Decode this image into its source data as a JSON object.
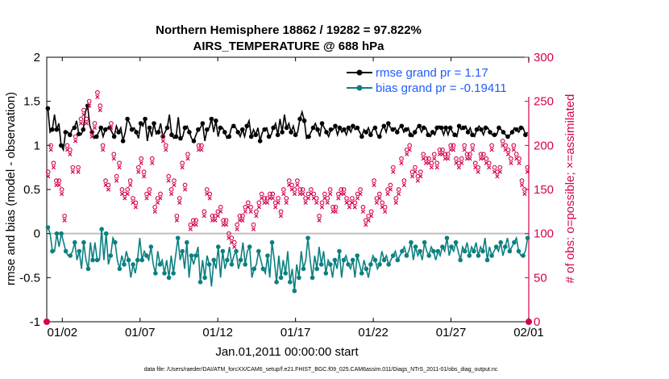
{
  "chart_data": {
    "type": "line",
    "title": "Northern Hemisphere 18862 / 19282 = 97.822%",
    "subtitle": "AIRS_TEMPERATURE @ 688 hPa",
    "xlabel": "Jan.01,2011 00:00:00 start",
    "ylabel_left": "rmse and bias (model - observation)",
    "ylabel_right": "# of obs: o=possible; ×=assimilated",
    "ylim_left": [
      -1,
      2
    ],
    "ylim_right": [
      0,
      300
    ],
    "xlim": [
      0,
      31
    ],
    "x_ticks": [
      {
        "day": 1,
        "label": "01/02"
      },
      {
        "day": 6,
        "label": "01/07"
      },
      {
        "day": 11,
        "label": "01/12"
      },
      {
        "day": 16,
        "label": "01/17"
      },
      {
        "day": 21,
        "label": "01/22"
      },
      {
        "day": 26,
        "label": "01/27"
      },
      {
        "day": 31,
        "label": "02/01"
      }
    ],
    "y_ticks_left": [
      "-1",
      "-0.5",
      "0",
      "0.5",
      "1",
      "1.5",
      "2"
    ],
    "y_ticks_right": [
      "0",
      "50",
      "100",
      "150",
      "200",
      "250",
      "300"
    ],
    "colors": {
      "rmse": "#000000",
      "bias": "#0c8080",
      "obs": "#d6004f",
      "legend_text": "#1f5cff",
      "zero_line": "#c0c0c0"
    },
    "legend": [
      {
        "name": "rmse grand pr = 1.17",
        "series": "rmse"
      },
      {
        "name": "bias grand pr = -0.19411",
        "series": "bias"
      }
    ],
    "series": [
      {
        "name": "rmse",
        "axis": "left",
        "values": [
          1.42,
          1.15,
          1.18,
          1.35,
          1.18,
          1.25,
          1.0,
          0.95,
          1.15,
          1.15,
          1.12,
          1.18,
          1.2,
          1.28,
          1.13,
          1.12,
          1.18,
          1.38,
          1.45,
          1.22,
          1.15,
          1.08,
          1.1,
          1.15,
          1.2,
          1.1,
          1.18,
          1.2,
          1.2,
          1.15,
          1.1,
          1.22,
          1.15,
          1.2,
          1.05,
          1.15,
          1.3,
          1.25,
          1.18,
          1.2,
          1.15,
          1.08,
          1.25,
          1.22,
          1.3,
          1.05,
          1.2,
          1.1,
          1.25,
          1.13,
          1.15,
          1.25,
          1.1,
          1.15,
          1.2,
          1.35,
          1.12,
          1.08,
          1.1,
          1.32,
          1.08,
          1.1,
          1.2,
          1.22,
          1.15,
          1.08,
          1.05,
          1.12,
          1.18,
          1.2,
          1.25,
          1.05,
          1.18,
          1.2,
          1.3,
          1.15,
          1.28,
          1.1,
          1.2,
          1.2,
          1.15,
          1.08,
          1.1,
          1.2,
          1.22,
          1.2,
          1.15,
          1.1,
          1.18,
          1.1,
          1.22,
          1.28,
          1.1,
          1.18,
          1.12,
          1.2,
          1.05,
          1.15,
          1.18,
          1.2,
          1.1,
          1.12,
          1.2,
          1.25,
          1.12,
          1.3,
          1.15,
          1.35,
          1.2,
          1.25,
          1.15,
          1.22,
          1.12,
          1.15,
          1.3,
          1.38,
          1.28,
          1.08,
          1.1,
          1.15,
          1.2,
          1.25,
          1.18,
          1.1,
          1.25,
          1.2,
          1.15,
          1.1,
          1.18,
          1.18,
          1.22,
          1.12,
          1.2,
          1.15,
          1.18,
          1.12,
          1.2,
          1.15,
          1.22,
          1.18,
          1.2,
          1.15,
          1.1,
          1.18,
          1.15,
          1.2,
          1.12,
          1.18,
          1.2,
          1.12,
          1.1,
          1.18,
          1.22,
          1.15,
          1.25,
          1.2,
          1.18,
          1.2,
          1.15,
          1.2,
          1.22,
          1.15,
          1.18,
          1.2,
          1.12,
          1.1,
          1.15,
          1.2,
          1.22,
          1.15,
          1.2,
          1.2,
          1.12,
          1.1,
          1.15,
          1.12,
          1.2,
          1.22,
          1.2,
          1.12,
          1.2,
          1.12,
          1.2,
          1.15,
          1.12,
          1.1,
          1.22,
          1.18,
          1.2,
          1.22,
          1.15,
          1.2,
          1.12,
          1.1,
          1.18,
          1.22,
          1.18,
          1.12,
          1.2,
          1.2,
          1.15,
          1.12,
          1.12,
          1.12,
          1.2,
          1.18,
          1.15,
          1.12,
          1.1,
          1.12,
          1.15,
          1.2,
          1.18,
          1.15,
          1.2,
          1.2,
          1.12,
          1.15
        ]
      },
      {
        "name": "bias",
        "axis": "left",
        "values": [
          0.07,
          0.0,
          -0.2,
          -0.2,
          0.0,
          -0.15,
          0.0,
          -0.1,
          -0.2,
          -0.25,
          -0.25,
          -0.2,
          -0.1,
          -0.3,
          -0.2,
          -0.4,
          -0.1,
          -0.3,
          -0.4,
          -0.1,
          -0.3,
          -0.1,
          -0.3,
          -0.3,
          0.05,
          -0.3,
          0.0,
          -0.35,
          -0.25,
          -0.05,
          -0.1,
          -0.3,
          -0.4,
          -0.25,
          -0.35,
          -0.2,
          -0.3,
          -0.5,
          -0.35,
          -0.45,
          -0.3,
          -0.05,
          -0.3,
          -0.2,
          -0.25,
          -0.3,
          -0.15,
          -0.35,
          -0.45,
          -0.2,
          -0.35,
          -0.3,
          -0.45,
          -0.3,
          -0.5,
          -0.25,
          -0.45,
          -0.25,
          -0.05,
          -0.3,
          -0.2,
          -0.4,
          -0.1,
          -0.5,
          -0.25,
          -0.35,
          -0.25,
          -0.15,
          -0.55,
          -0.3,
          -0.5,
          -0.25,
          -0.35,
          -0.6,
          -0.3,
          -0.4,
          -0.15,
          -0.5,
          -0.2,
          -0.4,
          -0.3,
          -0.15,
          -0.35,
          -0.25,
          -0.2,
          -0.4,
          -0.3,
          -0.1,
          -0.35,
          -0.2,
          -0.15,
          -0.5,
          -0.4,
          -0.35,
          -0.2,
          -0.3,
          -0.4,
          -0.45,
          -0.25,
          -0.5,
          -0.1,
          -0.3,
          -0.55,
          -0.25,
          -0.5,
          -0.3,
          -0.45,
          -0.2,
          -0.55,
          -0.4,
          -0.65,
          -0.35,
          -0.5,
          -0.2,
          -0.4,
          -0.3,
          -0.05,
          -0.3,
          -0.5,
          -0.25,
          -0.4,
          -0.15,
          -0.35,
          -0.2,
          -0.45,
          -0.3,
          -0.35,
          -0.5,
          -0.3,
          -0.4,
          -0.2,
          -0.5,
          -0.3,
          -0.25,
          -0.35,
          -0.4,
          -0.3,
          -0.5,
          -0.25,
          -0.35,
          -0.45,
          -0.3,
          -0.4,
          -0.5,
          -0.35,
          -0.25,
          -0.3,
          -0.4,
          -0.35,
          -0.2,
          -0.3,
          -0.25,
          -0.35,
          -0.3,
          -0.25,
          -0.2,
          -0.3,
          -0.25,
          -0.2,
          -0.15,
          -0.25,
          -0.2,
          -0.1,
          -0.3,
          -0.15,
          -0.25,
          -0.2,
          -0.3,
          -0.1,
          -0.2,
          -0.25,
          -0.15,
          -0.2,
          -0.3,
          -0.2,
          -0.25,
          -0.15,
          -0.2,
          -0.05,
          -0.25,
          -0.15,
          -0.2,
          -0.1,
          -0.2,
          -0.3,
          -0.15,
          -0.2,
          -0.1,
          -0.25,
          -0.15,
          -0.2,
          -0.1,
          -0.25,
          -0.15,
          -0.2,
          -0.05,
          -0.3,
          -0.15,
          -0.25,
          -0.2,
          -0.15,
          -0.2,
          -0.1,
          -0.25,
          -0.15,
          -0.05,
          -0.2,
          -0.15,
          -0.1,
          -0.05,
          -0.2,
          -0.25,
          -0.25,
          -0.2,
          -0.05
        ]
      },
      {
        "name": "obs_possible",
        "axis": "right",
        "marker": "o",
        "values": [
          170,
          200,
          180,
          160,
          160,
          150,
          120,
          200,
          195,
          175,
          210,
          175,
          230,
          240,
          230,
          250,
          215,
          225,
          260,
          245,
          200,
          160,
          155,
          225,
          190,
          165,
          180,
          150,
          145,
          150,
          160,
          140,
          135,
          175,
          185,
          170,
          145,
          150,
          185,
          130,
          140,
          145,
          210,
          200,
          165,
          150,
          160,
          120,
          140,
          180,
          155,
          190,
          110,
          115,
          115,
          200,
          200,
          125,
          150,
          145,
          120,
          120,
          125,
          130,
          115,
          115,
          100,
          95,
          90,
          110,
          120,
          120,
          130,
          135,
          130,
          110,
          125,
          135,
          145,
          140,
          140,
          145,
          145,
          135,
          140,
          125,
          150,
          140,
          160,
          155,
          150,
          160,
          150,
          150,
          140,
          145,
          150,
          145,
          140,
          120,
          135,
          145,
          140,
          150,
          130,
          130,
          145,
          150,
          150,
          140,
          135,
          140,
          135,
          145,
          150,
          130,
          115,
          120,
          125,
          160,
          140,
          145,
          135,
          130,
          150,
          155,
          175,
          140,
          150,
          185,
          160,
          195,
          200,
          170,
          175,
          165,
          170,
          190,
          185,
          185,
          180,
          190,
          180,
          195,
          195,
          190,
          190,
          200,
          200,
          185,
          180,
          185,
          200,
          190,
          190,
          200,
          180,
          175,
          190,
          190,
          185,
          180,
          200,
          175,
          170,
          175,
          205,
          200,
          195,
          185,
          200,
          190,
          185,
          160,
          150,
          175
        ]
      },
      {
        "name": "obs_assimilated",
        "axis": "right",
        "marker": "x",
        "values": [
          165,
          195,
          175,
          155,
          155,
          145,
          115,
          195,
          190,
          170,
          205,
          170,
          225,
          235,
          225,
          245,
          210,
          220,
          255,
          240,
          195,
          155,
          150,
          220,
          185,
          160,
          175,
          145,
          140,
          145,
          155,
          135,
          130,
          170,
          180,
          165,
          140,
          145,
          180,
          125,
          135,
          140,
          205,
          195,
          160,
          145,
          155,
          115,
          135,
          175,
          150,
          185,
          105,
          110,
          110,
          195,
          195,
          120,
          145,
          140,
          115,
          115,
          120,
          125,
          110,
          110,
          95,
          90,
          85,
          105,
          115,
          115,
          125,
          130,
          125,
          105,
          120,
          130,
          140,
          135,
          135,
          140,
          140,
          130,
          135,
          120,
          145,
          135,
          155,
          150,
          145,
          155,
          145,
          145,
          135,
          140,
          145,
          140,
          135,
          115,
          130,
          140,
          135,
          145,
          125,
          125,
          140,
          145,
          145,
          135,
          130,
          135,
          130,
          140,
          145,
          125,
          110,
          115,
          120,
          155,
          135,
          140,
          130,
          125,
          145,
          150,
          170,
          135,
          145,
          180,
          155,
          190,
          195,
          165,
          170,
          160,
          165,
          185,
          180,
          180,
          175,
          185,
          175,
          190,
          190,
          185,
          185,
          195,
          195,
          180,
          175,
          180,
          195,
          185,
          185,
          195,
          175,
          170,
          185,
          185,
          180,
          175,
          195,
          170,
          165,
          170,
          200,
          195,
          190,
          180,
          195,
          185,
          180,
          155,
          145,
          170
        ]
      }
    ]
  },
  "footer": "data file: /Users/raeder/DAI/ATM_forcXX/CAM6_setup/f.e21.FHIST_BGC.f09_025.CAM6assim.011/Diags_NTrS_2011-01/obs_diag_output.nc"
}
